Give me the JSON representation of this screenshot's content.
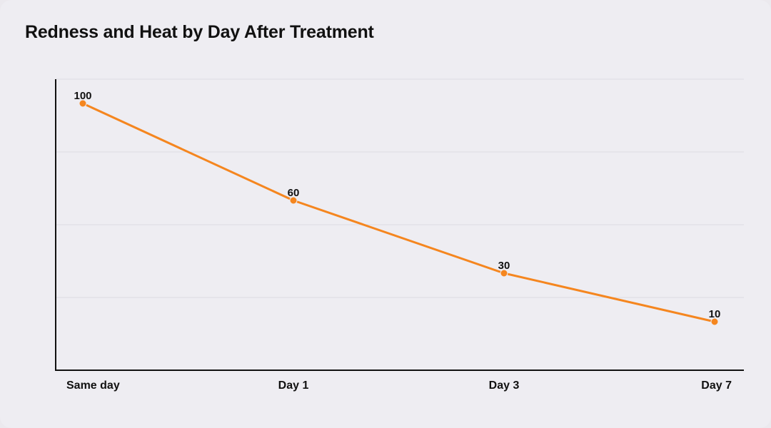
{
  "chart_data": {
    "type": "line",
    "title": "Redness and Heat by Day After Treatment",
    "xlabel": "",
    "ylabel": "",
    "categories": [
      "Same day",
      "Day 1",
      "Day 3",
      "Day 7"
    ],
    "series": [
      {
        "values": [
          100,
          60,
          30,
          10
        ],
        "color": "#f5861f"
      }
    ],
    "ylim": [
      -10,
      110
    ],
    "grid": true,
    "y_tick_labels_shown": false,
    "data_labels": true
  }
}
